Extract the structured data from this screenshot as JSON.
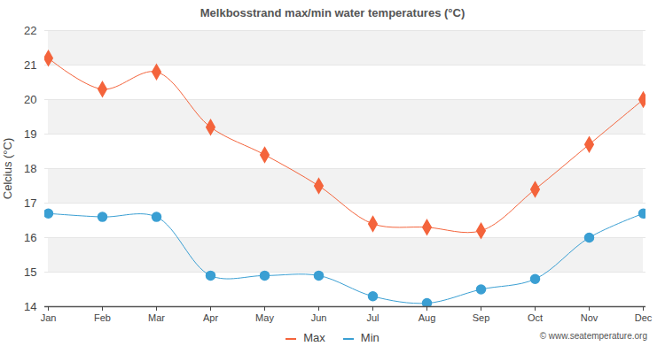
{
  "chart_data": {
    "type": "line",
    "title": "Melkbosstrand max/min water temperatures (°C)",
    "y_label": "Celcius (°C)",
    "caption": "© www.seatemperature.org",
    "categories": [
      "Jan",
      "Feb",
      "Mar",
      "Apr",
      "May",
      "Jun",
      "Jul",
      "Aug",
      "Sep",
      "Oct",
      "Nov",
      "Dec"
    ],
    "series": [
      {
        "name": "Max",
        "color": "#f4643c",
        "marker": "diamond",
        "values": [
          21.2,
          20.3,
          20.8,
          19.2,
          18.4,
          17.5,
          16.4,
          16.3,
          16.2,
          17.4,
          18.7,
          20.0
        ]
      },
      {
        "name": "Min",
        "color": "#3a9fd3",
        "marker": "circle",
        "values": [
          16.7,
          16.6,
          16.6,
          14.9,
          14.9,
          14.9,
          14.3,
          14.1,
          14.5,
          14.8,
          16.0,
          16.7
        ]
      }
    ],
    "ylim": [
      14,
      22
    ],
    "yticks": [
      14,
      15,
      16,
      17,
      18,
      19,
      20,
      21,
      22
    ],
    "grid": true,
    "legend": "bottom"
  }
}
